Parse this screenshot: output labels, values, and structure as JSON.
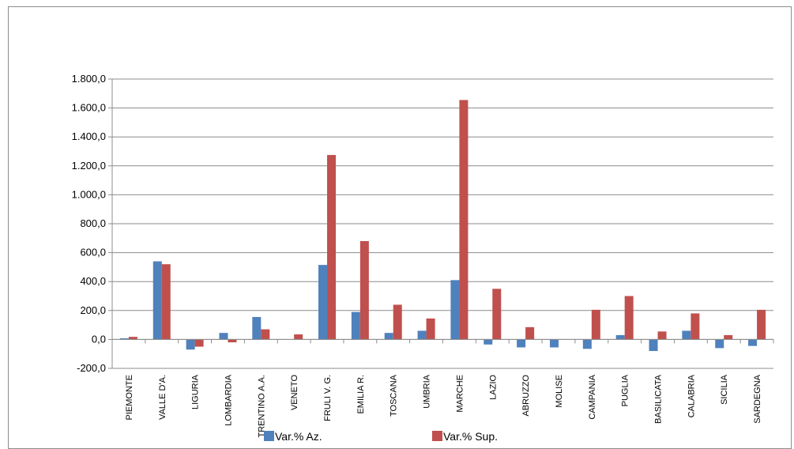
{
  "chart_data": {
    "type": "bar",
    "title": "",
    "xlabel": "",
    "ylabel": "",
    "ylim": [
      -200,
      1800
    ],
    "y_ticks": [
      -200,
      0,
      200,
      400,
      600,
      800,
      1000,
      1200,
      1400,
      1600,
      1800
    ],
    "y_tick_labels": [
      "-200,0",
      "0,0",
      "200,0",
      "400,0",
      "600,0",
      "800,0",
      "1.000,0",
      "1.200,0",
      "1.400,0",
      "1.600,0",
      "1.800,0"
    ],
    "grid": "horizontal",
    "legend_position": "bottom",
    "categories": [
      "PIEMONTE",
      "VALLE D'A.",
      "LIGURIA",
      "LOMBARDIA",
      "TRENTINO A.A.",
      "VENETO",
      "FRULI V. G.",
      "EMILIA R.",
      "TOSCANA",
      "UMBRIA",
      "MARCHE",
      "LAZIO",
      "ABRUZZO",
      "MOLISE",
      "CAMPANIA",
      "PUGLIA",
      "BASILICATA",
      "CALABRIA",
      "SICILIA",
      "SARDEGNA"
    ],
    "series": [
      {
        "name": "Var.% Az.",
        "color": "#4f81bd",
        "values": [
          8,
          540,
          -70,
          45,
          155,
          0,
          515,
          190,
          45,
          60,
          410,
          -35,
          -55,
          -55,
          -65,
          30,
          -80,
          60,
          -60,
          -45
        ]
      },
      {
        "name": "Var.% Sup.",
        "color": "#c0504d",
        "values": [
          18,
          520,
          -50,
          -20,
          70,
          35,
          1275,
          680,
          240,
          145,
          1655,
          350,
          85,
          0,
          205,
          300,
          55,
          180,
          30,
          205
        ]
      }
    ]
  }
}
